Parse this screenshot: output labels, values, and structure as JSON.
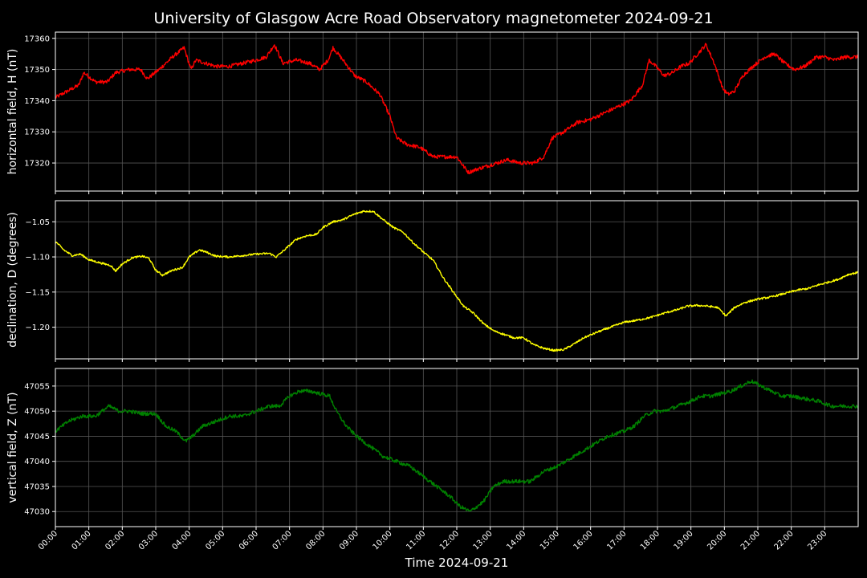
{
  "figure": {
    "title": "University of Glasgow Acre Road Observatory magnetometer 2024-09-21",
    "xlabel": "Time 2024-09-21",
    "background": "#000000",
    "grid_color": "#555555"
  },
  "chart_data": [
    {
      "type": "line",
      "ylabel": "horizontal field, H (nT)",
      "color": "#ff0000",
      "xlim": [
        0,
        24
      ],
      "ylim": [
        17311,
        17362
      ],
      "yticks": [
        17320,
        17330,
        17340,
        17350,
        17360
      ],
      "ytick_labels": [
        "17320",
        "17330",
        "17340",
        "17350",
        "17360"
      ],
      "grid": true,
      "series": [
        {
          "x": [
            0,
            0.35,
            0.7,
            0.85,
            1.2,
            1.55,
            1.8,
            2.2,
            2.55,
            2.75,
            3.1,
            3.5,
            3.85,
            4.05,
            4.2,
            4.5,
            4.8,
            5.2,
            5.6,
            6.0,
            6.3,
            6.55,
            6.8,
            7.2,
            7.6,
            7.9,
            8.15,
            8.3,
            8.6,
            8.95,
            9.3,
            9.7,
            10.0,
            10.2,
            10.5,
            10.9,
            11.3,
            11.7,
            12.0,
            12.2,
            12.35,
            12.6,
            12.9,
            13.2,
            13.5,
            13.9,
            14.3,
            14.6,
            14.85,
            15.2,
            15.6,
            16.0,
            16.4,
            16.8,
            17.2,
            17.55,
            17.75,
            17.95,
            18.2,
            18.45,
            18.7,
            18.95,
            19.2,
            19.45,
            19.7,
            19.95,
            20.1,
            20.3,
            20.55,
            20.85,
            21.2,
            21.5,
            21.8,
            22.1,
            22.4,
            22.75,
            23.0,
            23.3,
            23.6,
            24.0
          ],
          "y": [
            17341,
            17343,
            17345,
            17349,
            17346,
            17346,
            17349,
            17350,
            17350,
            17347,
            17350,
            17354,
            17357,
            17350,
            17353,
            17352,
            17351,
            17351,
            17352,
            17353,
            17354,
            17358,
            17352,
            17353,
            17352,
            17350,
            17353,
            17357,
            17353,
            17348,
            17346,
            17342,
            17335,
            17328,
            17326,
            17325,
            17322,
            17322,
            17322,
            17319,
            17317,
            17318,
            17319,
            17320,
            17321,
            17320,
            17320,
            17322,
            17328,
            17330,
            17333,
            17334,
            17336,
            17338,
            17340,
            17345,
            17353,
            17351,
            17348,
            17349,
            17351,
            17352,
            17355,
            17358,
            17352,
            17344,
            17342,
            17343,
            17348,
            17351,
            17354,
            17355,
            17352,
            17350,
            17351,
            17354,
            17354,
            17353,
            17354,
            17354
          ]
        }
      ]
    },
    {
      "type": "line",
      "ylabel": "declination, D (degrees)",
      "color": "#ffff00",
      "xlim": [
        0,
        24
      ],
      "ylim": [
        -1.245,
        -1.02
      ],
      "yticks": [
        -1.05,
        -1.1,
        -1.15,
        -1.2
      ],
      "ytick_labels": [
        "−1.05",
        "−1.10",
        "−1.15",
        "−1.20"
      ],
      "grid": true,
      "series": [
        {
          "x": [
            0,
            0.25,
            0.5,
            0.75,
            1.0,
            1.3,
            1.65,
            1.8,
            2.0,
            2.3,
            2.6,
            2.8,
            3.0,
            3.2,
            3.5,
            3.8,
            4.0,
            4.3,
            4.5,
            4.8,
            5.2,
            5.6,
            6.0,
            6.4,
            6.6,
            6.8,
            7.2,
            7.5,
            7.8,
            8.0,
            8.3,
            8.6,
            8.9,
            9.2,
            9.5,
            9.8,
            10.1,
            10.4,
            10.7,
            11.0,
            11.3,
            11.6,
            11.9,
            12.2,
            12.5,
            12.8,
            13.1,
            13.4,
            13.7,
            14.0,
            14.3,
            14.6,
            14.9,
            15.2,
            15.5,
            15.8,
            16.2,
            16.6,
            17.0,
            17.4,
            17.8,
            18.2,
            18.6,
            18.9,
            19.2,
            19.5,
            19.8,
            20.05,
            20.3,
            20.6,
            21.0,
            21.4,
            21.8,
            22.2,
            22.5,
            22.8,
            23.1,
            23.4,
            23.7,
            24.0
          ],
          "y": [
            -1.078,
            -1.09,
            -1.098,
            -1.096,
            -1.104,
            -1.108,
            -1.112,
            -1.12,
            -1.11,
            -1.101,
            -1.099,
            -1.102,
            -1.119,
            -1.126,
            -1.119,
            -1.115,
            -1.1,
            -1.09,
            -1.093,
            -1.099,
            -1.1,
            -1.098,
            -1.096,
            -1.095,
            -1.1,
            -1.092,
            -1.075,
            -1.07,
            -1.068,
            -1.058,
            -1.05,
            -1.047,
            -1.04,
            -1.035,
            -1.035,
            -1.047,
            -1.058,
            -1.065,
            -1.08,
            -1.093,
            -1.105,
            -1.13,
            -1.15,
            -1.17,
            -1.18,
            -1.195,
            -1.205,
            -1.21,
            -1.215,
            -1.215,
            -1.225,
            -1.23,
            -1.233,
            -1.232,
            -1.224,
            -1.215,
            -1.207,
            -1.2,
            -1.193,
            -1.19,
            -1.186,
            -1.18,
            -1.175,
            -1.17,
            -1.169,
            -1.17,
            -1.172,
            -1.184,
            -1.172,
            -1.165,
            -1.16,
            -1.157,
            -1.152,
            -1.147,
            -1.145,
            -1.14,
            -1.136,
            -1.132,
            -1.125,
            -1.122
          ]
        }
      ]
    },
    {
      "type": "line",
      "ylabel": "vertical field, Z (nT)",
      "color": "#008000",
      "xlim": [
        0,
        24
      ],
      "ylim": [
        47027,
        47058.5
      ],
      "yticks": [
        47030,
        47035,
        47040,
        47045,
        47050,
        47055
      ],
      "ytick_labels": [
        "47030",
        "47035",
        "47040",
        "47045",
        "47050",
        "47055"
      ],
      "grid": true,
      "series": [
        {
          "x": [
            0,
            0.4,
            0.8,
            1.2,
            1.6,
            1.9,
            2.2,
            2.6,
            3.0,
            3.3,
            3.6,
            3.9,
            4.1,
            4.4,
            4.8,
            5.2,
            5.6,
            6.0,
            6.4,
            6.7,
            7.0,
            7.3,
            7.6,
            7.9,
            8.2,
            8.4,
            8.7,
            9.0,
            9.4,
            9.8,
            10.2,
            10.6,
            11.0,
            11.4,
            11.8,
            12.1,
            12.4,
            12.8,
            13.1,
            13.4,
            13.8,
            14.2,
            14.6,
            15.0,
            15.5,
            16.0,
            16.5,
            17.0,
            17.3,
            17.6,
            17.9,
            18.2,
            18.6,
            19.0,
            19.3,
            19.6,
            19.9,
            20.2,
            20.5,
            20.8,
            21.1,
            21.4,
            21.7,
            22.0,
            22.4,
            22.8,
            23.2,
            23.6,
            24.0
          ],
          "y": [
            47046,
            47048,
            47049,
            47049,
            47051,
            47050,
            47050,
            47049.5,
            47049.5,
            47047,
            47046,
            47044,
            47045,
            47047,
            47048,
            47049,
            47049,
            47050,
            47051,
            47051,
            47053,
            47054,
            47054,
            47053.5,
            47053,
            47050,
            47047,
            47045,
            47043,
            47041,
            47040,
            47039,
            47037,
            47035,
            47033,
            47031,
            47030,
            47032,
            47035,
            47036,
            47036,
            47036,
            47038,
            47039,
            47041,
            47043,
            47045,
            47046,
            47047,
            47049,
            47050,
            47050,
            47051,
            47052,
            47053,
            47053,
            47053.5,
            47054,
            47055,
            47056,
            47055,
            47054,
            47053,
            47053,
            47052.5,
            47052,
            47051,
            47051,
            47051
          ]
        }
      ]
    }
  ],
  "xaxis": {
    "ticks": [
      0,
      1,
      2,
      3,
      4,
      5,
      6,
      7,
      8,
      9,
      10,
      11,
      12,
      13,
      14,
      15,
      16,
      17,
      18,
      19,
      20,
      21,
      22,
      23
    ],
    "labels": [
      "00:00",
      "01:00",
      "02:00",
      "03:00",
      "04:00",
      "05:00",
      "06:00",
      "07:00",
      "08:00",
      "09:00",
      "10:00",
      "11:00",
      "12:00",
      "13:00",
      "14:00",
      "15:00",
      "16:00",
      "17:00",
      "18:00",
      "19:00",
      "20:00",
      "21:00",
      "22:00",
      "23:00"
    ]
  }
}
